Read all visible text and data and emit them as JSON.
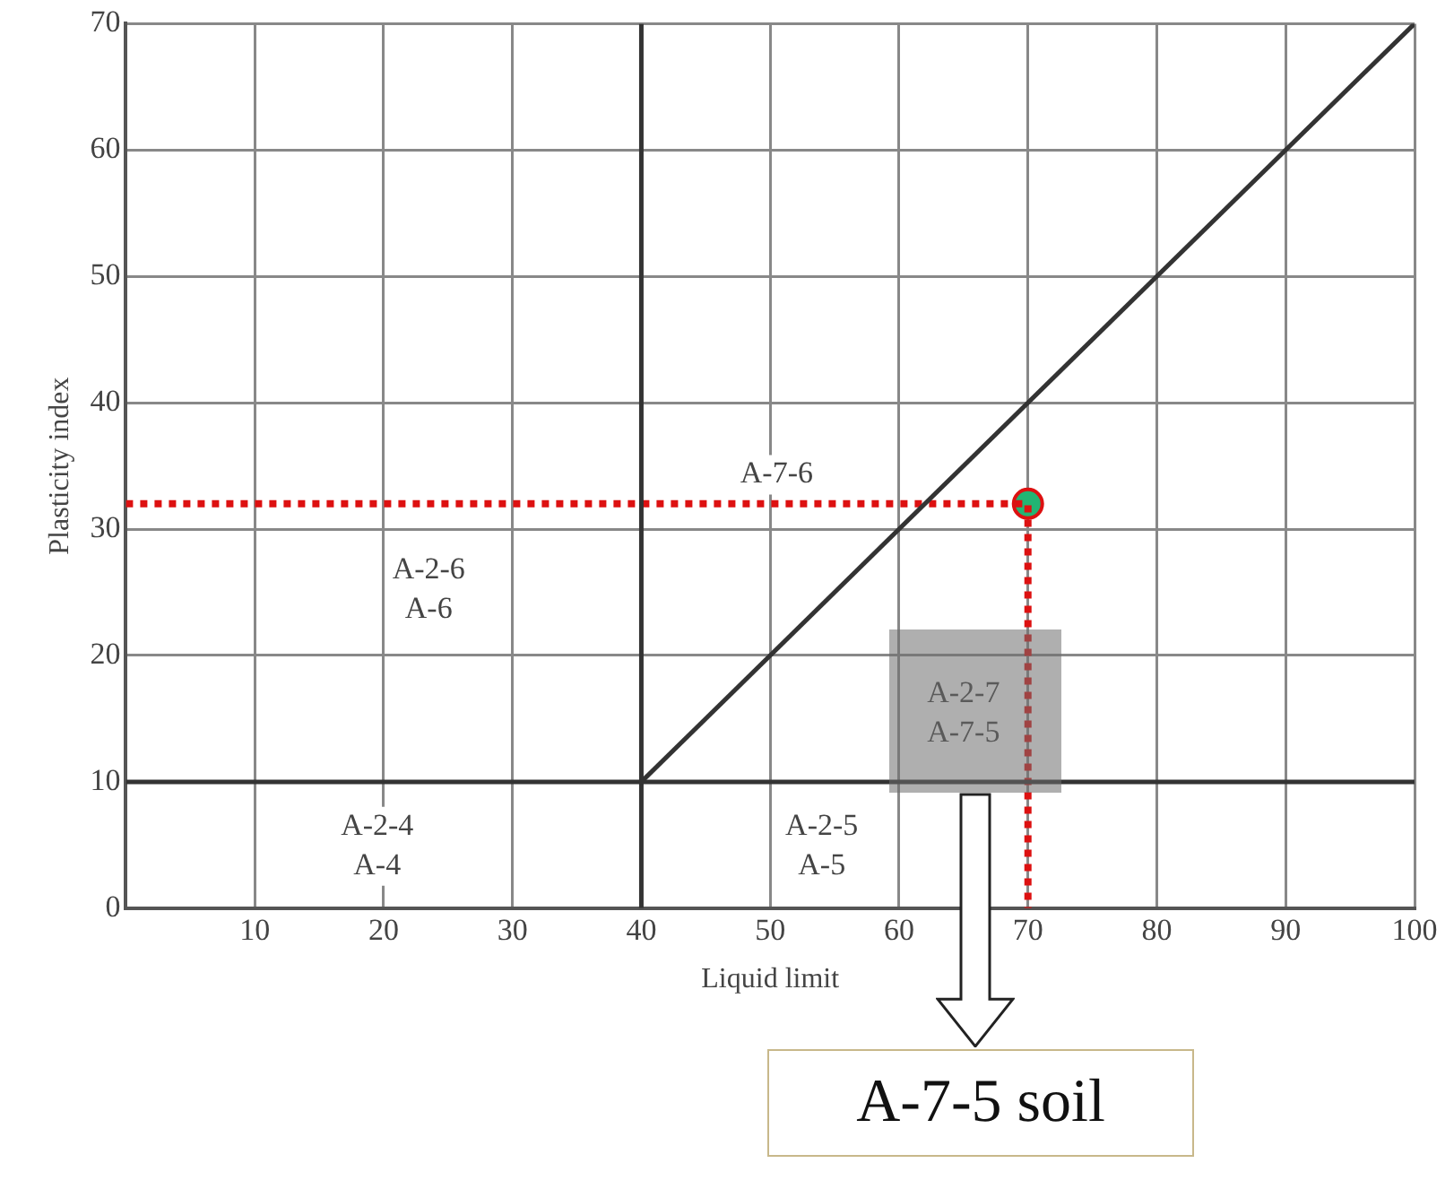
{
  "chart_data": {
    "type": "line",
    "xlabel": "Liquid limit",
    "ylabel": "Plasticity index",
    "xlim": [
      0,
      100
    ],
    "ylim": [
      0,
      70
    ],
    "xticks": [
      10,
      20,
      30,
      40,
      50,
      60,
      70,
      80,
      90,
      100
    ],
    "yticks": [
      0,
      10,
      20,
      30,
      40,
      50,
      60,
      70
    ],
    "grid": true,
    "legend": false,
    "series": [
      {
        "x": [
          0,
          100
        ],
        "values": [
          10,
          10
        ],
        "color": "#333333",
        "marker": "none"
      },
      {
        "x": [
          40,
          40
        ],
        "values": [
          0,
          70
        ],
        "color": "#333333",
        "marker": "none"
      },
      {
        "x": [
          40,
          100
        ],
        "values": [
          10,
          70
        ],
        "color": "#333333",
        "marker": "none"
      },
      {
        "type": "line",
        "x": [
          0,
          70,
          70
        ],
        "values": [
          32,
          32,
          0
        ],
        "color": "#dd1111",
        "line_style": "dotted",
        "marker": "none"
      },
      {
        "type": "scatter",
        "x": [
          70
        ],
        "values": [
          32
        ],
        "color": "#22b573",
        "marker": "circle"
      }
    ],
    "annotations": [
      "A-7-6",
      "A-2-6\nA-6",
      "A-2-4\nA-4",
      "A-2-5\nA-5",
      "A-2-7\nA-7-5",
      "A-7-5 soil"
    ]
  }
}
